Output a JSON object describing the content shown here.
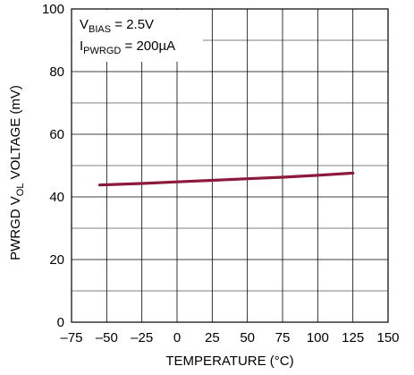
{
  "chart_data": {
    "type": "line",
    "title": "",
    "xlabel": "TEMPERATURE (°C)",
    "ylabel": {
      "pre": "PWRGD V",
      "sub": "OL",
      "post": " VOLTAGE (mV)"
    },
    "xlim": [
      -75,
      150
    ],
    "ylim": [
      0,
      100
    ],
    "x_ticks": [
      -75,
      -50,
      -25,
      0,
      25,
      50,
      75,
      100,
      125,
      150
    ],
    "x_tick_labels": [
      "–75",
      "–50",
      "–25",
      "0",
      "25",
      "50",
      "75",
      "100",
      "125",
      "150"
    ],
    "y_ticks": [
      0,
      20,
      40,
      60,
      80,
      100
    ],
    "y_tick_labels": [
      "0",
      "20",
      "40",
      "60",
      "80",
      "100"
    ],
    "grid": true,
    "series": [
      {
        "color": "#8b1a3c",
        "x": [
          -55,
          -25,
          0,
          25,
          50,
          75,
          100,
          125
        ],
        "y": [
          43.8,
          44.3,
          44.8,
          45.3,
          45.8,
          46.3,
          46.9,
          47.6
        ]
      }
    ],
    "annotations": [
      {
        "main": "V",
        "sub": "BIAS",
        "rest": " = 2.5V"
      },
      {
        "main": "I",
        "sub": "PWRGD",
        "rest": " = 200µA"
      }
    ]
  }
}
